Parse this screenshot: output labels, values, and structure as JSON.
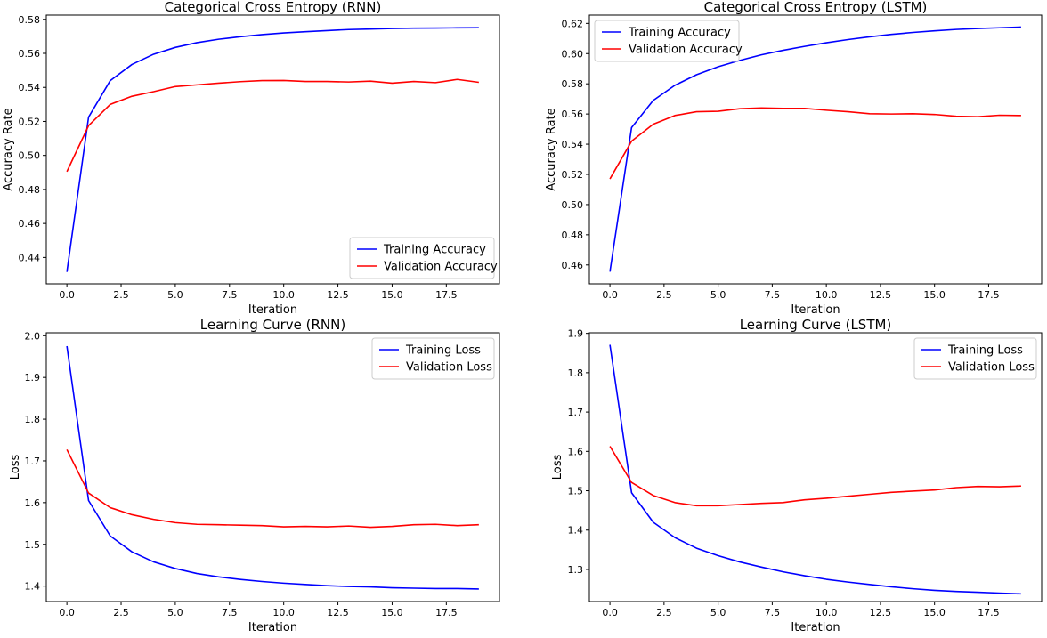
{
  "chart_data": [
    {
      "type": "line",
      "title": "Categorical Cross Entropy (RNN)",
      "xlabel": "Iteration",
      "ylabel": "Accuracy Rate",
      "xlim": [
        -0.95,
        19.95
      ],
      "ylim": [
        0.4245,
        0.5825
      ],
      "xticks": [
        0.0,
        2.5,
        5.0,
        7.5,
        10.0,
        12.5,
        15.0,
        17.5
      ],
      "xtick_labels": [
        "0.0",
        "2.5",
        "5.0",
        "7.5",
        "10.0",
        "12.5",
        "15.0",
        "17.5"
      ],
      "yticks": [
        0.44,
        0.46,
        0.48,
        0.5,
        0.52,
        0.54,
        0.56,
        0.58
      ],
      "ytick_labels": [
        "0.44",
        "0.46",
        "0.48",
        "0.50",
        "0.52",
        "0.54",
        "0.56",
        "0.58"
      ],
      "grid": false,
      "legend_loc": "lower-right",
      "x": [
        0,
        1,
        2,
        3,
        4,
        5,
        6,
        7,
        8,
        9,
        10,
        11,
        12,
        13,
        14,
        15,
        16,
        17,
        18,
        19
      ],
      "series": [
        {
          "name": "Training Accuracy",
          "color": "#0000ff",
          "values": [
            0.4315,
            0.5225,
            0.544,
            0.5535,
            0.5595,
            0.5635,
            0.5663,
            0.5683,
            0.5698,
            0.571,
            0.572,
            0.5727,
            0.5734,
            0.574,
            0.5743,
            0.5746,
            0.5748,
            0.5749,
            0.575,
            0.5751
          ]
        },
        {
          "name": "Validation Accuracy",
          "color": "#ff0000",
          "values": [
            0.4905,
            0.5175,
            0.53,
            0.5348,
            0.5375,
            0.5405,
            0.5415,
            0.5425,
            0.5434,
            0.544,
            0.5441,
            0.5435,
            0.5435,
            0.5432,
            0.5437,
            0.5425,
            0.5435,
            0.5428,
            0.5447,
            0.543
          ]
        }
      ]
    },
    {
      "type": "line",
      "title": "Categorical Cross Entropy (LSTM)",
      "xlabel": "Iteration",
      "ylabel": "Accuracy Rate",
      "xlim": [
        -0.95,
        19.95
      ],
      "ylim": [
        0.4475,
        0.6255
      ],
      "xticks": [
        0.0,
        2.5,
        5.0,
        7.5,
        10.0,
        12.5,
        15.0,
        17.5
      ],
      "xtick_labels": [
        "0.0",
        "2.5",
        "5.0",
        "7.5",
        "10.0",
        "12.5",
        "15.0",
        "17.5"
      ],
      "yticks": [
        0.46,
        0.48,
        0.5,
        0.52,
        0.54,
        0.56,
        0.58,
        0.6,
        0.62
      ],
      "ytick_labels": [
        "0.46",
        "0.48",
        "0.50",
        "0.52",
        "0.54",
        "0.56",
        "0.58",
        "0.60",
        "0.62"
      ],
      "grid": false,
      "legend_loc": "upper-left",
      "x": [
        0,
        1,
        2,
        3,
        4,
        5,
        6,
        7,
        8,
        9,
        10,
        11,
        12,
        13,
        14,
        15,
        16,
        17,
        18,
        19
      ],
      "series": [
        {
          "name": "Training Accuracy",
          "color": "#0000ff",
          "values": [
            0.4555,
            0.551,
            0.569,
            0.579,
            0.586,
            0.5913,
            0.5955,
            0.5992,
            0.6022,
            0.6048,
            0.6072,
            0.6093,
            0.6111,
            0.6127,
            0.614,
            0.6151,
            0.616,
            0.6166,
            0.6171,
            0.6176
          ]
        },
        {
          "name": "Validation Accuracy",
          "color": "#ff0000",
          "values": [
            0.517,
            0.542,
            0.5532,
            0.559,
            0.5615,
            0.5618,
            0.5635,
            0.564,
            0.5637,
            0.5637,
            0.5625,
            0.5615,
            0.5602,
            0.56,
            0.5602,
            0.5597,
            0.5585,
            0.5582,
            0.5592,
            0.559
          ]
        }
      ]
    },
    {
      "type": "line",
      "title": "Learning Curve (RNN)",
      "xlabel": "Iteration",
      "ylabel": "Loss",
      "xlim": [
        -0.95,
        19.95
      ],
      "ylim": [
        1.363,
        2.007
      ],
      "xticks": [
        0.0,
        2.5,
        5.0,
        7.5,
        10.0,
        12.5,
        15.0,
        17.5
      ],
      "xtick_labels": [
        "0.0",
        "2.5",
        "5.0",
        "7.5",
        "10.0",
        "12.5",
        "15.0",
        "17.5"
      ],
      "yticks": [
        1.4,
        1.5,
        1.6,
        1.7,
        1.8,
        1.9,
        2.0
      ],
      "ytick_labels": [
        "1.4",
        "1.5",
        "1.6",
        "1.7",
        "1.8",
        "1.9",
        "2.0"
      ],
      "grid": false,
      "legend_loc": "upper-right",
      "x": [
        0,
        1,
        2,
        3,
        4,
        5,
        6,
        7,
        8,
        9,
        10,
        11,
        12,
        13,
        14,
        15,
        16,
        17,
        18,
        19
      ],
      "series": [
        {
          "name": "Training Loss",
          "color": "#0000ff",
          "values": [
            1.975,
            1.605,
            1.52,
            1.482,
            1.458,
            1.442,
            1.43,
            1.422,
            1.416,
            1.411,
            1.407,
            1.404,
            1.401,
            1.399,
            1.398,
            1.396,
            1.395,
            1.394,
            1.394,
            1.393
          ]
        },
        {
          "name": "Validation Loss",
          "color": "#ff0000",
          "values": [
            1.727,
            1.623,
            1.588,
            1.571,
            1.56,
            1.552,
            1.548,
            1.547,
            1.546,
            1.545,
            1.542,
            1.543,
            1.542,
            1.544,
            1.541,
            1.543,
            1.547,
            1.548,
            1.545,
            1.547
          ]
        }
      ]
    },
    {
      "type": "line",
      "title": "Learning Curve (LSTM)",
      "xlabel": "Iteration",
      "ylabel": "Loss",
      "xlim": [
        -0.95,
        19.95
      ],
      "ylim": [
        1.2185,
        1.9015
      ],
      "xticks": [
        0.0,
        2.5,
        5.0,
        7.5,
        10.0,
        12.5,
        15.0,
        17.5
      ],
      "xtick_labels": [
        "0.0",
        "2.5",
        "5.0",
        "7.5",
        "10.0",
        "12.5",
        "15.0",
        "17.5"
      ],
      "yticks": [
        1.3,
        1.4,
        1.5,
        1.6,
        1.7,
        1.8,
        1.9
      ],
      "ytick_labels": [
        "1.3",
        "1.4",
        "1.5",
        "1.6",
        "1.7",
        "1.8",
        "1.9"
      ],
      "grid": false,
      "legend_loc": "upper-right",
      "x": [
        0,
        1,
        2,
        3,
        4,
        5,
        6,
        7,
        8,
        9,
        10,
        11,
        12,
        13,
        14,
        15,
        16,
        17,
        18,
        19
      ],
      "series": [
        {
          "name": "Training Loss",
          "color": "#0000ff",
          "values": [
            1.871,
            1.495,
            1.42,
            1.381,
            1.354,
            1.335,
            1.319,
            1.306,
            1.294,
            1.284,
            1.275,
            1.268,
            1.262,
            1.256,
            1.251,
            1.247,
            1.244,
            1.242,
            1.24,
            1.238
          ]
        },
        {
          "name": "Validation Loss",
          "color": "#ff0000",
          "values": [
            1.613,
            1.521,
            1.488,
            1.47,
            1.462,
            1.462,
            1.465,
            1.468,
            1.47,
            1.477,
            1.481,
            1.486,
            1.491,
            1.496,
            1.499,
            1.502,
            1.508,
            1.511,
            1.51,
            1.512
          ]
        }
      ]
    }
  ]
}
